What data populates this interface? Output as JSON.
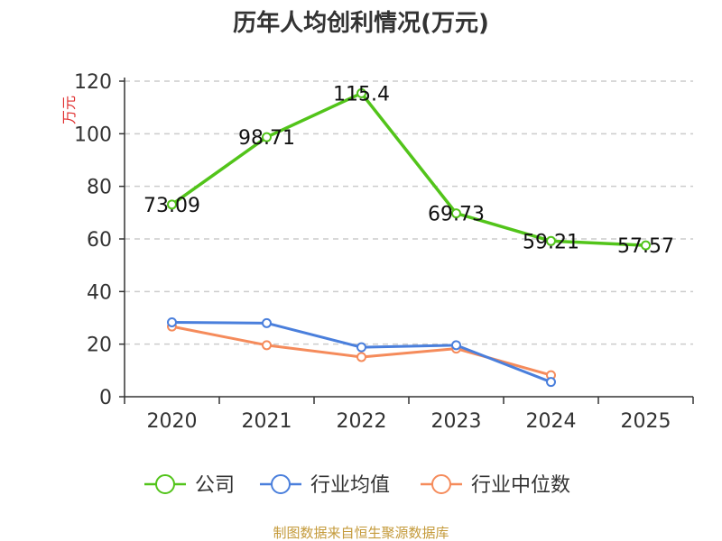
{
  "chart_data": {
    "type": "line",
    "title": "历年人均创利情况(万元)",
    "ylabel": "万元",
    "xlabel": "",
    "categories": [
      "2020",
      "2021",
      "2022",
      "2023",
      "2024",
      "2025"
    ],
    "ylim": [
      0,
      120
    ],
    "yticks": [
      0,
      20,
      40,
      60,
      80,
      100,
      120
    ],
    "grid": true,
    "legend_position": "bottom",
    "series": [
      {
        "name": "公司",
        "color": "#52c41a",
        "values": [
          73.09,
          98.71,
          115.4,
          69.73,
          59.21,
          57.57
        ],
        "labels": [
          "73.09",
          "98.71",
          "115.4",
          "69.73",
          "59.21",
          "57.57"
        ]
      },
      {
        "name": "行业均值",
        "color": "#4a7fdc",
        "values": [
          28.3,
          28.0,
          18.8,
          19.6,
          5.6,
          null
        ]
      },
      {
        "name": "行业中位数",
        "color": "#f58b5b",
        "values": [
          26.7,
          19.6,
          15.1,
          18.3,
          8.2,
          null
        ]
      }
    ]
  },
  "source": "制图数据来自恒生聚源数据库"
}
